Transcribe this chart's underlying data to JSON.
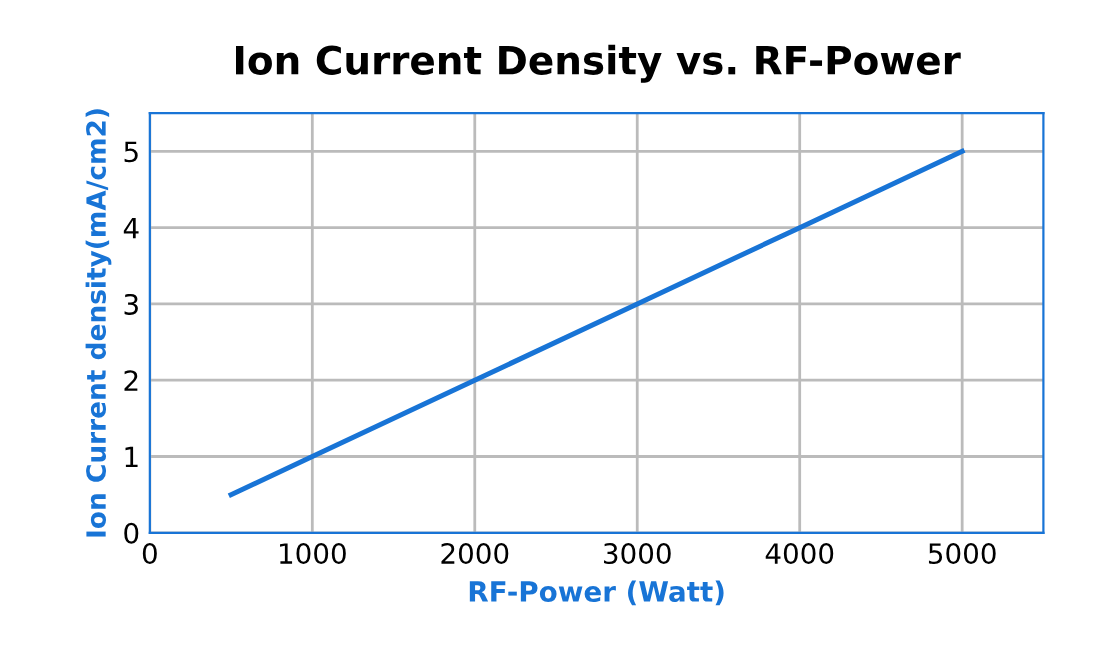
{
  "chart_data": {
    "type": "line",
    "title": "Ion Current Density vs. RF-Power",
    "xlabel": "RF-Power (Watt)",
    "ylabel": "Ion Current density(mA/cm2)",
    "x": [
      500,
      1000,
      2000,
      3000,
      4000,
      5000
    ],
    "series": [
      {
        "color": "#1874d6",
        "values": [
          0.5,
          1,
          2,
          3,
          4,
          5
        ]
      }
    ],
    "xlim": [
      0,
      5500
    ],
    "ylim": [
      0,
      5.5
    ],
    "xticks": [
      0,
      1000,
      2000,
      3000,
      4000,
      5000
    ],
    "yticks": [
      0,
      1,
      2,
      3,
      4,
      5
    ],
    "grid": true,
    "legend": false,
    "marker": "none",
    "line_style": "solid"
  }
}
